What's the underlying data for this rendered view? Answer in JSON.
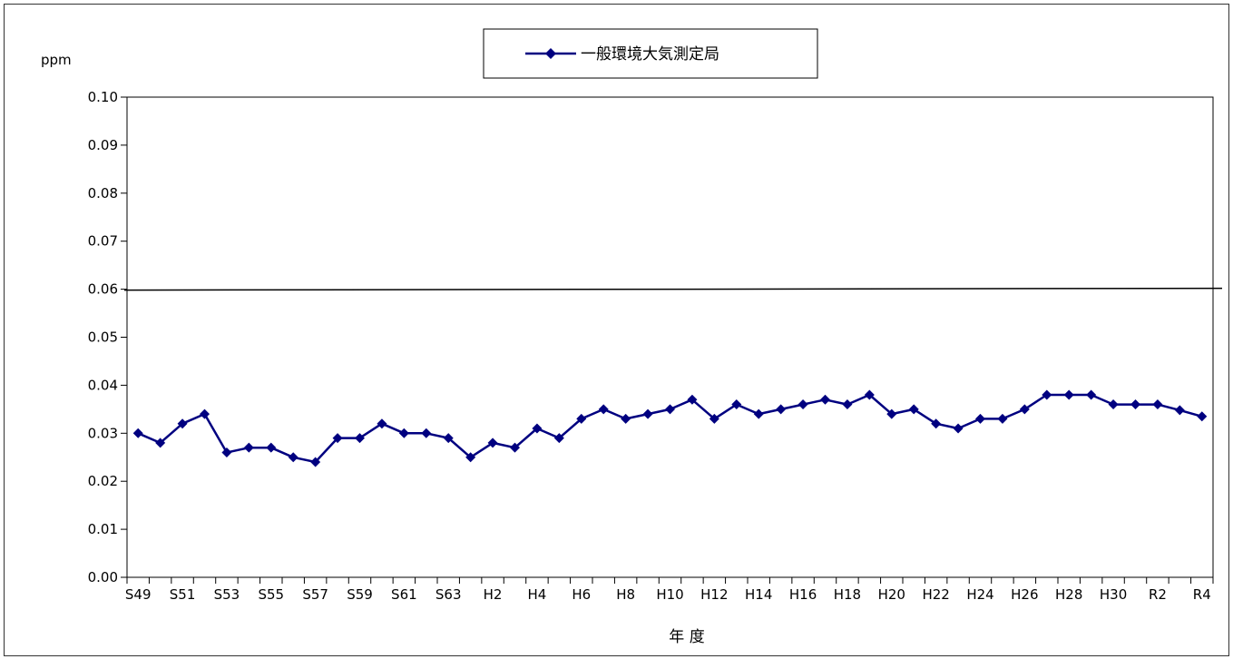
{
  "chart_data": {
    "type": "line",
    "ylabel": "ppm",
    "xlabel": "年 度",
    "ylim": [
      0,
      0.1
    ],
    "y_ticks": [
      "0.00",
      "0.01",
      "0.02",
      "0.03",
      "0.04",
      "0.05",
      "0.06",
      "0.07",
      "0.08",
      "0.09",
      "0.10"
    ],
    "x": [
      "S49",
      "S50",
      "S51",
      "S52",
      "S53",
      "S54",
      "S55",
      "S56",
      "S57",
      "S58",
      "S59",
      "S60",
      "S61",
      "S62",
      "S63",
      "H1",
      "H2",
      "H3",
      "H4",
      "H5",
      "H6",
      "H7",
      "H8",
      "H9",
      "H10",
      "H11",
      "H12",
      "H13",
      "H14",
      "H15",
      "H16",
      "H17",
      "H18",
      "H19",
      "H20",
      "H21",
      "H22",
      "H23",
      "H24",
      "H25",
      "H26",
      "H27",
      "H28",
      "H29",
      "H30",
      "R1",
      "R2",
      "R3",
      "R4"
    ],
    "x_tick_labels": [
      "S49",
      "S51",
      "S53",
      "S55",
      "S57",
      "S59",
      "S61",
      "S63",
      "H2",
      "H4",
      "H6",
      "H8",
      "H10",
      "H12",
      "H14",
      "H16",
      "H18",
      "H20",
      "H22",
      "H24",
      "H26",
      "H28",
      "H30",
      "R2",
      "R4"
    ],
    "series": [
      {
        "name": "一般環境大気測定局",
        "color": "#000080",
        "marker": "diamond",
        "values": [
          0.03,
          0.028,
          0.032,
          0.034,
          0.026,
          0.027,
          0.027,
          0.025,
          0.024,
          0.029,
          0.029,
          0.032,
          0.03,
          0.03,
          0.029,
          0.025,
          0.028,
          0.027,
          0.031,
          0.029,
          0.033,
          0.035,
          0.033,
          0.034,
          0.035,
          0.037,
          0.033,
          0.036,
          0.034,
          0.035,
          0.036,
          0.037,
          0.036,
          0.038,
          0.034,
          0.035,
          0.032,
          0.031,
          0.033,
          0.033,
          0.035,
          0.038,
          0.038,
          0.038,
          0.036,
          0.036,
          0.036,
          0.0348,
          0.0335
        ]
      }
    ],
    "reference_line": {
      "value": 0.06,
      "color": "#000000"
    },
    "grid": false,
    "legend": {
      "position": "top-center"
    }
  }
}
